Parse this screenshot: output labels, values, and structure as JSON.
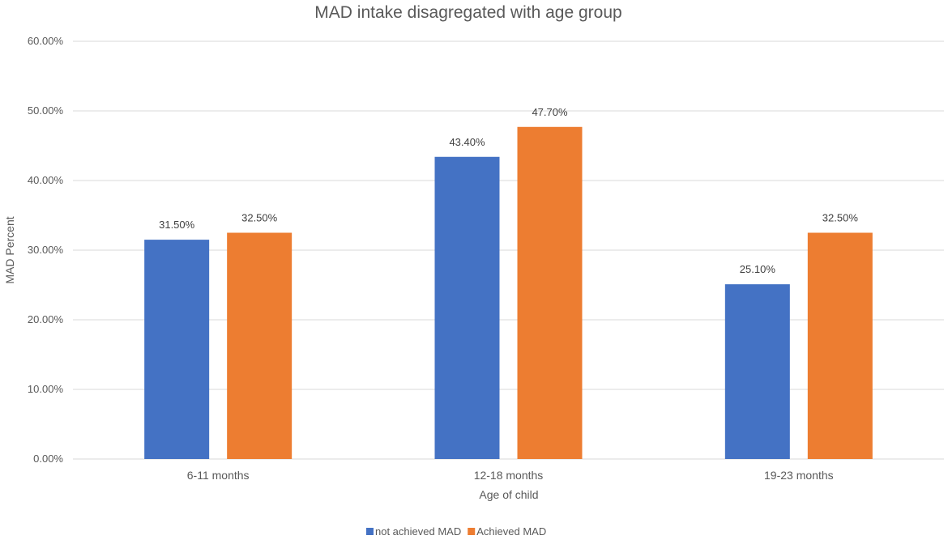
{
  "chart_data": {
    "type": "bar",
    "title": "MAD intake disagregated with age group",
    "xlabel": "Age of child",
    "ylabel": "MAD  Percent",
    "categories": [
      "6-11 months",
      "12-18 months",
      "19-23 months"
    ],
    "series": [
      {
        "name": "not achieved MAD",
        "values": [
          31.5,
          43.4,
          25.1
        ],
        "labels": [
          "31.50%",
          "43.40%",
          "25.10%"
        ],
        "color": "#4472C4"
      },
      {
        "name": "Achieved MAD",
        "values": [
          32.5,
          47.7,
          32.5
        ],
        "labels": [
          "32.50%",
          "47.70%",
          "32.50%"
        ],
        "color": "#ED7D31"
      }
    ],
    "ylim": [
      0,
      60
    ],
    "yticks": [
      0,
      10,
      20,
      30,
      40,
      50,
      60
    ],
    "ytick_labels": [
      "0.00%",
      "10.00%",
      "20.00%",
      "30.00%",
      "40.00%",
      "50.00%",
      "60.00%"
    ],
    "grid": true,
    "legend_position": "bottom"
  }
}
